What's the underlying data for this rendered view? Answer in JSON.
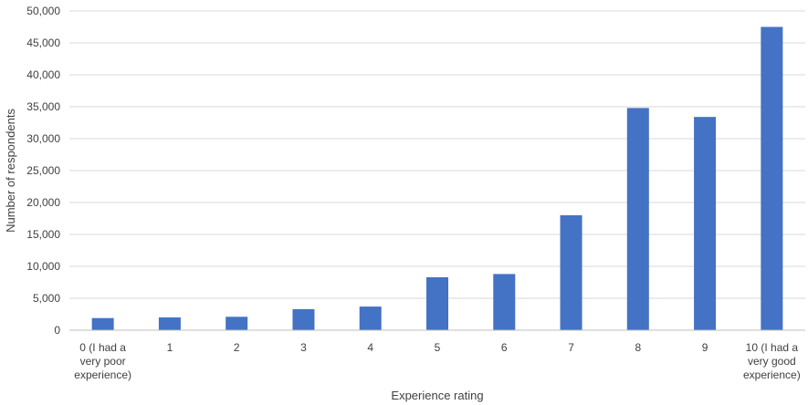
{
  "chart_data": {
    "type": "bar",
    "xlabel": "Experience rating",
    "ylabel": "Number of respondents",
    "ylim": [
      0,
      50000
    ],
    "yticks": [
      "0",
      "5,000",
      "10,000",
      "15,000",
      "20,000",
      "25,000",
      "30,000",
      "35,000",
      "40,000",
      "45,000",
      "50,000"
    ],
    "grid": true,
    "bar_color": "#4472C4",
    "categories": [
      [
        "0 (I had a",
        "very poor",
        "experience)"
      ],
      [
        "1"
      ],
      [
        "2"
      ],
      [
        "3"
      ],
      [
        "4"
      ],
      [
        "5"
      ],
      [
        "6"
      ],
      [
        "7"
      ],
      [
        "8"
      ],
      [
        "9"
      ],
      [
        "10 (I had a",
        "very good",
        "experience)"
      ]
    ],
    "values": [
      1900,
      2000,
      2100,
      3300,
      3700,
      8300,
      8800,
      18000,
      34800,
      33400,
      47500
    ]
  }
}
